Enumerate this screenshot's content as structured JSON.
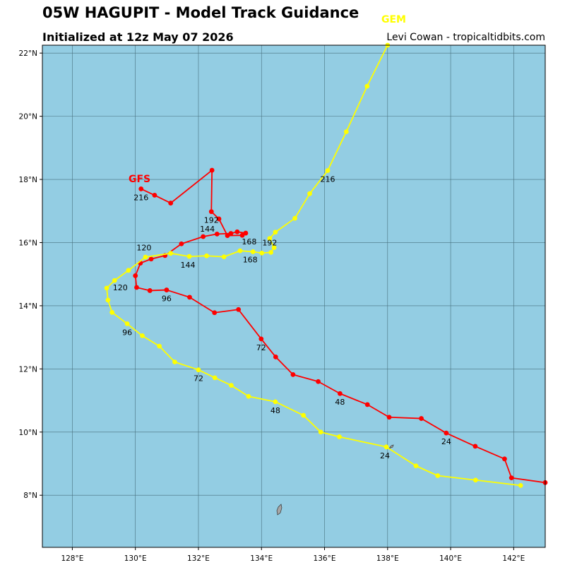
{
  "header": {
    "title": "05W HAGUPIT - Model Track Guidance",
    "subtitle": "Initialized at 12z May 07 2026",
    "credit": "Levi Cowan - tropicaltidbits.com"
  },
  "map": {
    "background": "#93cde3",
    "land_color": "#a6a6a6",
    "grid": true,
    "lon_range": [
      127.05,
      143.0
    ],
    "lat_range": [
      6.35,
      22.25
    ],
    "lon_ticks": [
      {
        "v": 128,
        "t": "128°E"
      },
      {
        "v": 130,
        "t": "130°E"
      },
      {
        "v": 132,
        "t": "132°E"
      },
      {
        "v": 134,
        "t": "134°E"
      },
      {
        "v": 136,
        "t": "136°E"
      },
      {
        "v": 138,
        "t": "138°E"
      },
      {
        "v": 140,
        "t": "140°E"
      },
      {
        "v": 142,
        "t": "142°E"
      }
    ],
    "lat_ticks": [
      {
        "v": 8,
        "t": "8°N"
      },
      {
        "v": 10,
        "t": "10°N"
      },
      {
        "v": 12,
        "t": "12°N"
      },
      {
        "v": 14,
        "t": "14°N"
      },
      {
        "v": 16,
        "t": "16°N"
      },
      {
        "v": 18,
        "t": "18°N"
      },
      {
        "v": 20,
        "t": "20°N"
      },
      {
        "v": 22,
        "t": "22°N"
      }
    ]
  },
  "chart_data": {
    "type": "scatter",
    "title": "05W HAGUPIT - Model Track Guidance",
    "x_unit": "degrees E longitude",
    "y_unit": "degrees N latitude",
    "series": [
      {
        "name": "GFS",
        "color": "#ff0000",
        "points": [
          [
            143.0,
            8.4
          ],
          [
            141.93,
            8.55
          ],
          [
            141.71,
            9.15
          ],
          [
            140.78,
            9.55
          ],
          [
            139.86,
            9.97
          ],
          [
            139.07,
            10.43
          ],
          [
            138.05,
            10.47
          ],
          [
            137.36,
            10.87
          ],
          [
            136.49,
            11.22
          ],
          [
            135.8,
            11.6
          ],
          [
            135.0,
            11.82
          ],
          [
            134.45,
            12.38
          ],
          [
            133.99,
            12.95
          ],
          [
            133.27,
            13.88
          ],
          [
            132.51,
            13.78
          ],
          [
            131.72,
            14.27
          ],
          [
            130.99,
            14.5
          ],
          [
            130.46,
            14.48
          ],
          [
            130.04,
            14.58
          ],
          [
            130.0,
            14.95
          ],
          [
            130.16,
            15.35
          ],
          [
            130.5,
            15.48
          ],
          [
            130.94,
            15.59
          ],
          [
            131.46,
            15.96
          ],
          [
            132.15,
            16.19
          ],
          [
            132.59,
            16.27
          ],
          [
            133.03,
            16.29
          ],
          [
            133.23,
            16.34
          ],
          [
            133.5,
            16.3
          ],
          [
            133.39,
            16.23
          ],
          [
            132.92,
            16.22
          ],
          [
            132.65,
            16.75
          ],
          [
            132.41,
            16.98
          ],
          [
            132.43,
            18.29
          ],
          [
            131.12,
            17.25
          ],
          [
            130.61,
            17.5
          ],
          [
            130.18,
            17.7
          ]
        ],
        "hour_labels": [
          {
            "h": "24",
            "pt": 4
          },
          {
            "h": "48",
            "pt": 8
          },
          {
            "h": "72",
            "pt": 12
          },
          {
            "h": "96",
            "pt": 16
          },
          {
            "h": "120",
            "pt": 20
          },
          {
            "h": "144",
            "pt": 24
          },
          {
            "h": "168",
            "pt": 28
          },
          {
            "h": "192",
            "pt": 32
          },
          {
            "h": "216",
            "pt": 36
          }
        ]
      },
      {
        "name": "GEM",
        "color": "#ffff00",
        "points": [
          [
            142.22,
            8.31
          ],
          [
            140.79,
            8.48
          ],
          [
            139.59,
            8.62
          ],
          [
            138.9,
            8.93
          ],
          [
            137.96,
            9.53
          ],
          [
            136.47,
            9.85
          ],
          [
            135.88,
            10.0
          ],
          [
            135.33,
            10.53
          ],
          [
            134.44,
            10.96
          ],
          [
            133.59,
            11.13
          ],
          [
            133.04,
            11.48
          ],
          [
            132.52,
            11.72
          ],
          [
            132.0,
            11.97
          ],
          [
            131.25,
            12.22
          ],
          [
            130.76,
            12.72
          ],
          [
            130.22,
            13.05
          ],
          [
            129.74,
            13.43
          ],
          [
            129.26,
            13.79
          ],
          [
            129.13,
            14.18
          ],
          [
            129.09,
            14.56
          ],
          [
            129.34,
            14.8
          ],
          [
            129.78,
            15.12
          ],
          [
            130.32,
            15.54
          ],
          [
            131.12,
            15.66
          ],
          [
            131.71,
            15.56
          ],
          [
            132.26,
            15.58
          ],
          [
            132.81,
            15.55
          ],
          [
            133.32,
            15.74
          ],
          [
            133.73,
            15.71
          ],
          [
            134.01,
            15.67
          ],
          [
            134.3,
            15.69
          ],
          [
            134.4,
            15.84
          ],
          [
            134.26,
            16.13
          ],
          [
            134.44,
            16.33
          ],
          [
            135.06,
            16.77
          ],
          [
            135.53,
            17.55
          ],
          [
            136.1,
            18.28
          ],
          [
            136.69,
            19.51
          ],
          [
            137.35,
            20.95
          ],
          [
            138.0,
            22.25
          ]
        ],
        "hour_labels": [
          {
            "h": "24",
            "pt": 4
          },
          {
            "h": "48",
            "pt": 8
          },
          {
            "h": "72",
            "pt": 12
          },
          {
            "h": "96",
            "pt": 16
          },
          {
            "h": "120",
            "pt": 20
          },
          {
            "h": "144",
            "pt": 24
          },
          {
            "h": "168",
            "pt": 28
          },
          {
            "h": "192",
            "pt": 32
          },
          {
            "h": "216",
            "pt": 36
          }
        ]
      }
    ]
  }
}
